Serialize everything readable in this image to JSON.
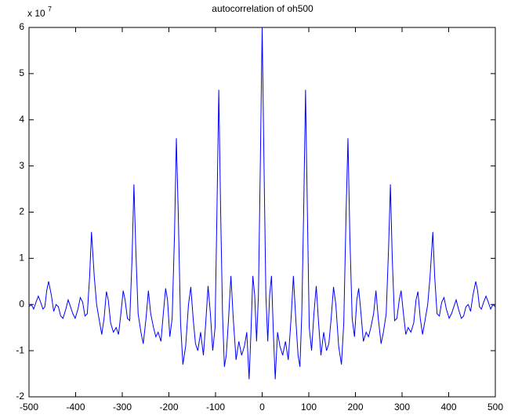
{
  "chart_data": {
    "type": "line",
    "title": "autocorrelation of oh500",
    "multiplier_base": "x 10",
    "multiplier_exponent": "7",
    "color": "#0000ff",
    "xlim": [
      -500,
      500
    ],
    "xticks": [
      -500,
      -400,
      -300,
      -200,
      -100,
      0,
      100,
      200,
      300,
      400,
      500
    ],
    "ylim": [
      -2,
      6
    ],
    "yticks": [
      -2,
      -1,
      0,
      1,
      2,
      3,
      4,
      5,
      6
    ],
    "x": [
      -500,
      -495,
      -490,
      -485,
      -480,
      -475,
      -470,
      -466,
      -462,
      -458,
      -452,
      -447,
      -442,
      -437,
      -432,
      -427,
      -421,
      -416,
      -411,
      -406,
      -401,
      -395,
      -390,
      -385,
      -380,
      -375,
      -370,
      -366,
      -360,
      -355,
      -350,
      -344,
      -339,
      -334,
      -330,
      -325,
      -319,
      -313,
      -308,
      -303,
      -298,
      -294,
      -289,
      -284,
      -279,
      -275,
      -271,
      -266,
      -260,
      -255,
      -249,
      -244,
      -239,
      -233,
      -228,
      -223,
      -217,
      -212,
      -207,
      -203,
      -198,
      -193,
      -188,
      -184,
      -180,
      -175,
      -170,
      -164,
      -158,
      -153,
      -148,
      -143,
      -138,
      -132,
      -126,
      -121,
      -116,
      -111,
      -106,
      -101,
      -97,
      -93,
      -89,
      -85,
      -81,
      -77,
      -72,
      -67,
      -62,
      -56,
      -50,
      -44,
      -38,
      -33,
      -28,
      -24,
      -20,
      -16,
      -12,
      -8,
      -4,
      0,
      4,
      8,
      12,
      16,
      20,
      24,
      28,
      33,
      38,
      44,
      50,
      56,
      62,
      67,
      72,
      77,
      81,
      85,
      89,
      93,
      97,
      101,
      106,
      111,
      116,
      121,
      126,
      132,
      138,
      143,
      148,
      153,
      158,
      164,
      170,
      175,
      180,
      184,
      188,
      193,
      198,
      203,
      207,
      212,
      217,
      223,
      228,
      233,
      239,
      244,
      249,
      255,
      260,
      266,
      271,
      275,
      279,
      284,
      289,
      294,
      298,
      303,
      308,
      313,
      319,
      325,
      330,
      334,
      339,
      344,
      350,
      355,
      360,
      366,
      370,
      375,
      380,
      385,
      390,
      395,
      401,
      406,
      411,
      416,
      421,
      427,
      432,
      437,
      442,
      447,
      452,
      458,
      462,
      466,
      470,
      475,
      480,
      485,
      490,
      495,
      500
    ],
    "values": [
      -0.05,
      0,
      -0.1,
      0.05,
      0.18,
      0.05,
      -0.1,
      -0.05,
      0.3,
      0.5,
      0.2,
      -0.15,
      0,
      -0.05,
      -0.25,
      -0.3,
      -0.1,
      0.1,
      -0.05,
      -0.2,
      -0.3,
      -0.1,
      0.15,
      0.05,
      -0.25,
      -0.2,
      0.6,
      1.57,
      0.6,
      0,
      -0.3,
      -0.65,
      -0.3,
      0.28,
      0.1,
      -0.4,
      -0.6,
      -0.5,
      -0.65,
      -0.2,
      0.3,
      0.1,
      -0.3,
      -0.35,
      1.0,
      2.6,
      1.2,
      -0.2,
      -0.6,
      -0.85,
      -0.3,
      0.3,
      -0.2,
      -0.5,
      -0.7,
      -0.6,
      -0.8,
      -0.2,
      0.35,
      0.1,
      -0.7,
      -0.3,
      1.5,
      3.6,
      2.0,
      -0.4,
      -1.3,
      -0.9,
      0,
      0.38,
      -0.3,
      -0.85,
      -1.0,
      -0.6,
      -1.1,
      -0.4,
      0.4,
      -0.2,
      -1.0,
      -0.5,
      2.0,
      4.65,
      2.0,
      -0.2,
      -1.35,
      -1.1,
      -0.3,
      0.62,
      -0.3,
      -1.2,
      -0.8,
      -1.1,
      -0.9,
      -0.6,
      -1.62,
      -0.6,
      0.62,
      0.2,
      -0.8,
      0.2,
      3.0,
      6,
      3.0,
      0.2,
      -0.8,
      0.2,
      0.62,
      -0.6,
      -1.62,
      -0.6,
      -0.9,
      -1.1,
      -0.8,
      -1.2,
      -0.3,
      0.62,
      -0.3,
      -1.1,
      -1.35,
      -0.2,
      2.0,
      4.65,
      2.0,
      -0.5,
      -1.0,
      -0.2,
      0.4,
      -0.4,
      -1.1,
      -0.6,
      -1.0,
      -0.85,
      -0.3,
      0.38,
      0,
      -0.9,
      -1.3,
      -0.4,
      2.0,
      3.6,
      1.5,
      -0.3,
      -0.7,
      0.1,
      0.35,
      -0.2,
      -0.8,
      -0.6,
      -0.7,
      -0.5,
      -0.2,
      0.3,
      -0.3,
      -0.85,
      -0.6,
      -0.2,
      1.2,
      2.6,
      1.0,
      -0.35,
      -0.3,
      0.1,
      0.3,
      -0.2,
      -0.65,
      -0.5,
      -0.6,
      -0.4,
      0.1,
      0.28,
      -0.3,
      -0.65,
      -0.3,
      0,
      0.6,
      1.57,
      0.6,
      -0.2,
      -0.25,
      0.05,
      0.15,
      -0.1,
      -0.3,
      -0.2,
      -0.05,
      0.1,
      -0.1,
      -0.3,
      -0.25,
      -0.05,
      0,
      -0.15,
      0.2,
      0.5,
      0.3,
      -0.05,
      -0.1,
      0.05,
      0.18,
      0.05,
      -0.1,
      0,
      -0.05
    ]
  }
}
